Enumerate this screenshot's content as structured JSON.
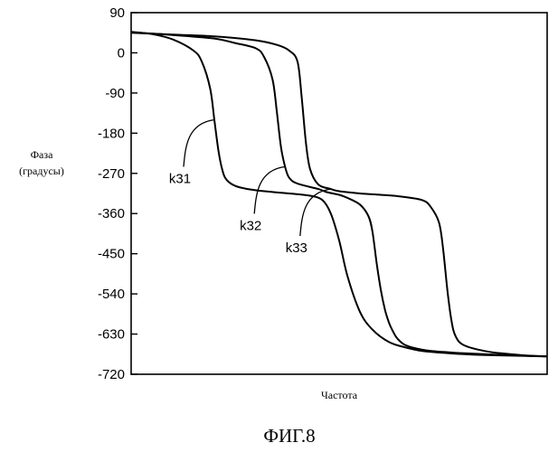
{
  "figure_caption": "ФИГ.8",
  "chart_data": {
    "type": "line",
    "title": "",
    "xlabel": "Частота",
    "ylabel": [
      "Фаза",
      "(градусы)"
    ],
    "ylim": [
      -720,
      90
    ],
    "xlim": [
      0,
      1
    ],
    "x_scale": "frequency (no tick labels)",
    "yticks": [
      90,
      0,
      -90,
      -180,
      -270,
      -360,
      -450,
      -540,
      -630,
      -720
    ],
    "ytick_labels": [
      "90",
      "0",
      "-90",
      "-180",
      "-270",
      "-360",
      "-450",
      "-540",
      "-630",
      "-720"
    ],
    "grid": false,
    "legend": "none; curves labeled by leader-line annotations",
    "series": [
      {
        "name": "k31",
        "x": [
          0,
          0.05,
          0.1,
          0.15,
          0.17,
          0.19,
          0.2,
          0.21,
          0.22,
          0.23,
          0.25,
          0.28,
          0.32,
          0.38,
          0.43,
          0.46,
          0.48,
          0.5,
          0.52,
          0.55,
          0.58,
          0.62,
          0.66,
          0.7,
          0.75,
          0.8,
          0.85,
          0.9,
          0.95,
          1.0
        ],
        "values": [
          47,
          42,
          30,
          5,
          -20,
          -80,
          -150,
          -220,
          -265,
          -285,
          -298,
          -305,
          -310,
          -315,
          -320,
          -330,
          -360,
          -420,
          -500,
          -580,
          -620,
          -648,
          -660,
          -668,
          -672,
          -675,
          -677,
          -678,
          -679,
          -680
        ]
      },
      {
        "name": "k32",
        "x": [
          0,
          0.1,
          0.2,
          0.25,
          0.3,
          0.32,
          0.34,
          0.35,
          0.36,
          0.37,
          0.38,
          0.4,
          0.45,
          0.47,
          0.5,
          0.52,
          0.55,
          0.57,
          0.58,
          0.59,
          0.6,
          0.61,
          0.62,
          0.63,
          0.64,
          0.66,
          0.7,
          0.75,
          0.8,
          0.9,
          1.0
        ],
        "values": [
          46,
          40,
          32,
          22,
          10,
          -10,
          -60,
          -130,
          -210,
          -255,
          -280,
          -293,
          -305,
          -312,
          -318,
          -325,
          -340,
          -365,
          -400,
          -470,
          -530,
          -575,
          -605,
          -625,
          -640,
          -655,
          -665,
          -670,
          -673,
          -677,
          -680
        ]
      },
      {
        "name": "k33",
        "x": [
          0,
          0.1,
          0.2,
          0.3,
          0.35,
          0.38,
          0.4,
          0.41,
          0.42,
          0.43,
          0.45,
          0.48,
          0.5,
          0.55,
          0.6,
          0.65,
          0.7,
          0.72,
          0.74,
          0.75,
          0.76,
          0.77,
          0.78,
          0.8,
          0.85,
          0.9,
          0.95,
          1.0
        ],
        "values": [
          45,
          41,
          37,
          28,
          18,
          5,
          -20,
          -100,
          -200,
          -260,
          -295,
          -305,
          -310,
          -315,
          -318,
          -322,
          -330,
          -345,
          -380,
          -440,
          -530,
          -600,
          -635,
          -655,
          -668,
          -674,
          -678,
          -680
        ]
      }
    ],
    "annotations": [
      {
        "text": "k31",
        "series": "k31",
        "at_x": 0.2
      },
      {
        "text": "k32",
        "series": "k32",
        "at_x": 0.37
      },
      {
        "text": "k33",
        "series": "k33",
        "at_x": 0.48
      }
    ]
  }
}
